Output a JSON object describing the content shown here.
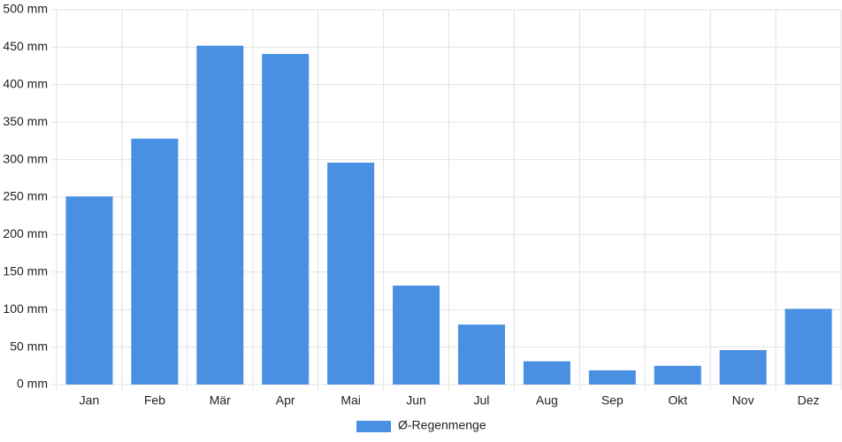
{
  "chart_data": {
    "type": "bar",
    "categories": [
      "Jan",
      "Feb",
      "Mär",
      "Apr",
      "Mai",
      "Jun",
      "Jul",
      "Aug",
      "Sep",
      "Okt",
      "Nov",
      "Dez"
    ],
    "series": [
      {
        "name": "Ø-Regenmenge",
        "color": "#4a90e2",
        "values": [
          251,
          328,
          452,
          441,
          296,
          132,
          80,
          31,
          19,
          25,
          46,
          101
        ]
      }
    ],
    "ylim": [
      0,
      500
    ],
    "yticks": [
      {
        "value": 0,
        "label": "0 mm"
      },
      {
        "value": 50,
        "label": "50 mm"
      },
      {
        "value": 100,
        "label": "100 mm"
      },
      {
        "value": 150,
        "label": "150 mm"
      },
      {
        "value": 200,
        "label": "200 mm"
      },
      {
        "value": 250,
        "label": "250 mm"
      },
      {
        "value": 300,
        "label": "300 mm"
      },
      {
        "value": 350,
        "label": "350 mm"
      },
      {
        "value": 400,
        "label": "400 mm"
      },
      {
        "value": 450,
        "label": "450 mm"
      },
      {
        "value": 500,
        "label": "500 mm"
      }
    ],
    "grid": true,
    "legend": "bottom"
  }
}
